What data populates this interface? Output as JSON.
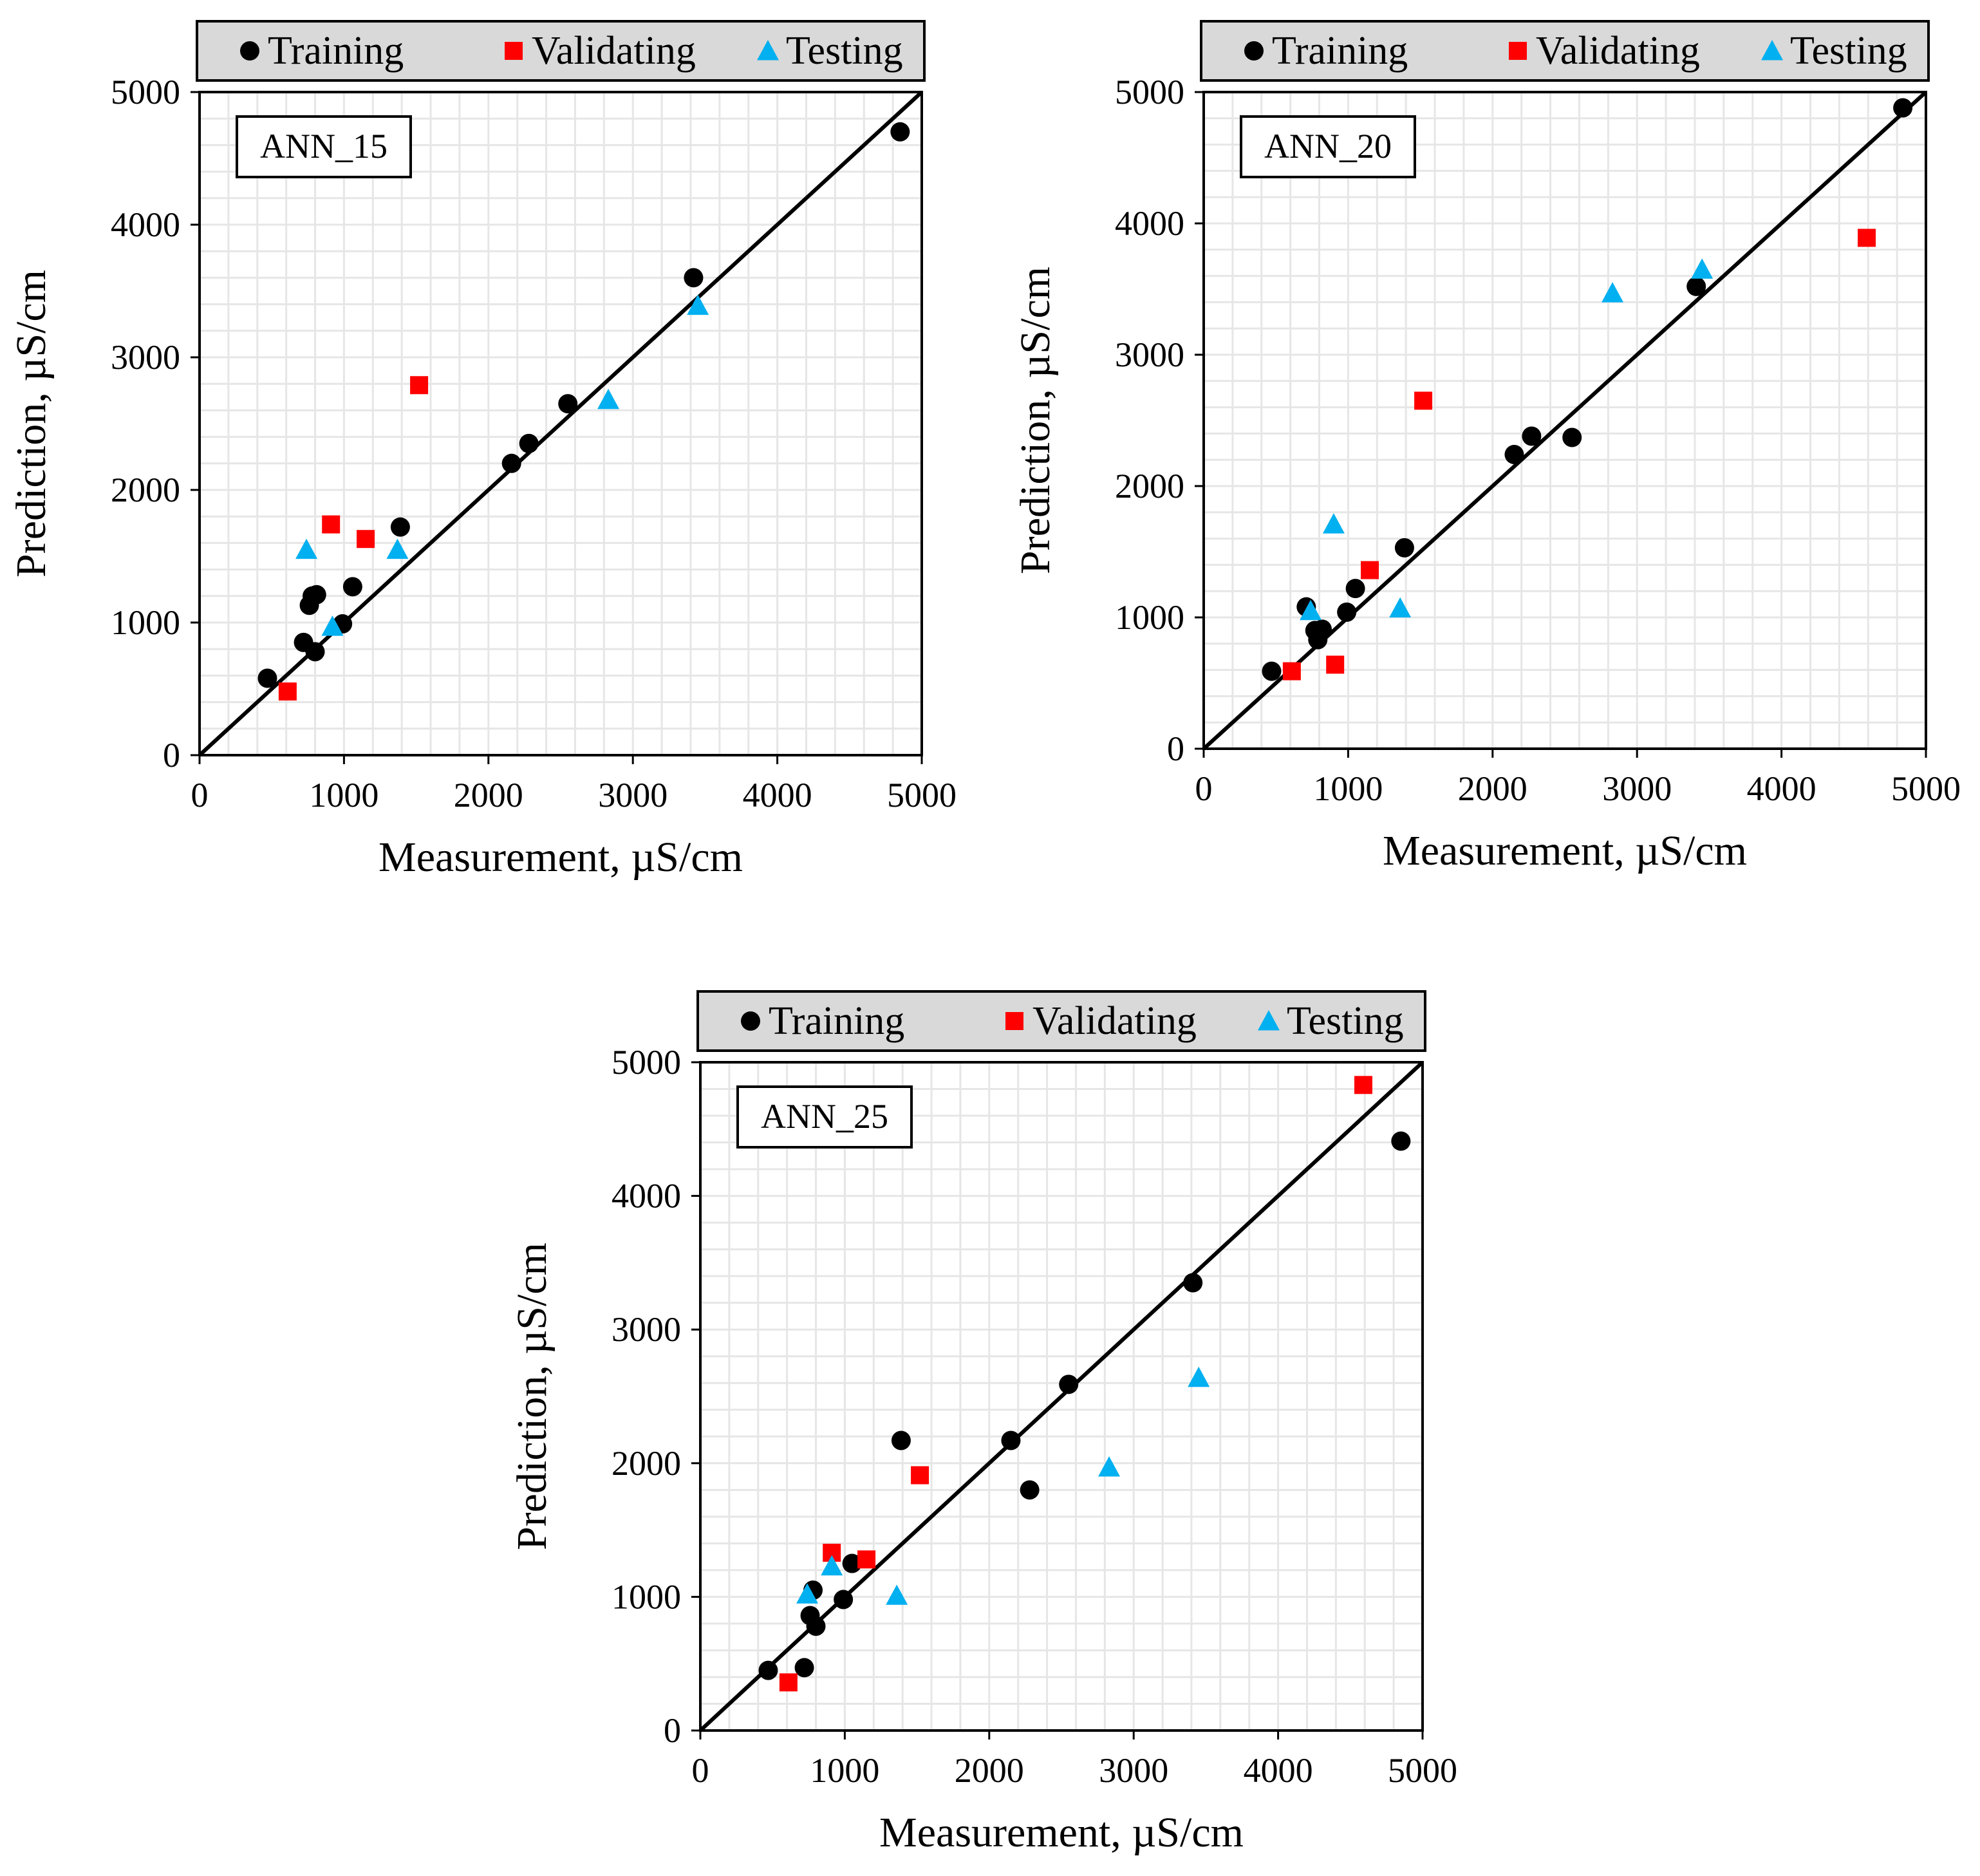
{
  "chart_data": [
    {
      "type": "scatter",
      "panel_label": "ANN_15",
      "title": "",
      "xlabel": "Measurement, µS/cm",
      "ylabel": "Prediction, µS/cm",
      "xlim": [
        0,
        5000
      ],
      "ylim": [
        0,
        5000
      ],
      "x_ticks": [
        "0",
        "1000",
        "2000",
        "3000",
        "4000",
        "5000"
      ],
      "y_ticks": [
        "0",
        "1000",
        "2000",
        "3000",
        "4000",
        "5000"
      ],
      "grid": true,
      "legend_position": "top",
      "reference_line": {
        "from": [
          0,
          0
        ],
        "to": [
          5000,
          5000
        ]
      },
      "series": [
        {
          "name": "Training",
          "marker": "circle",
          "color": "#000000",
          "points": [
            [
              470,
              580
            ],
            [
              720,
              850
            ],
            [
              760,
              1130
            ],
            [
              780,
              1200
            ],
            [
              810,
              1210
            ],
            [
              800,
              780
            ],
            [
              990,
              990
            ],
            [
              1060,
              1270
            ],
            [
              1390,
              1720
            ],
            [
              2160,
              2200
            ],
            [
              2280,
              2350
            ],
            [
              2550,
              2650
            ],
            [
              3420,
              3600
            ],
            [
              4850,
              4700
            ]
          ]
        },
        {
          "name": "Validating",
          "marker": "square",
          "color": "#ff0000",
          "points": [
            [
              610,
              480
            ],
            [
              910,
              1740
            ],
            [
              1150,
              1630
            ],
            [
              1520,
              2790
            ]
          ]
        },
        {
          "name": "Testing",
          "marker": "triangle",
          "color": "#00b0f0",
          "points": [
            [
              740,
              1550
            ],
            [
              920,
              970
            ],
            [
              1370,
              1550
            ],
            [
              2830,
              2680
            ],
            [
              3450,
              3390
            ]
          ]
        }
      ]
    },
    {
      "type": "scatter",
      "panel_label": "ANN_20",
      "title": "",
      "xlabel": "Measurement, µS/cm",
      "ylabel": "Prediction, µS/cm",
      "xlim": [
        0,
        5000
      ],
      "ylim": [
        0,
        5000
      ],
      "x_ticks": [
        "0",
        "1000",
        "2000",
        "3000",
        "4000",
        "5000"
      ],
      "y_ticks": [
        "0",
        "1000",
        "2000",
        "3000",
        "4000",
        "5000"
      ],
      "grid": true,
      "legend_position": "top",
      "reference_line": {
        "from": [
          0,
          0
        ],
        "to": [
          5000,
          5000
        ]
      },
      "series": [
        {
          "name": "Training",
          "marker": "circle",
          "color": "#000000",
          "points": [
            [
              470,
              590
            ],
            [
              710,
              1080
            ],
            [
              770,
              900
            ],
            [
              790,
              830
            ],
            [
              820,
              910
            ],
            [
              990,
              1040
            ],
            [
              1050,
              1220
            ],
            [
              1390,
              1530
            ],
            [
              2150,
              2240
            ],
            [
              2270,
              2380
            ],
            [
              2550,
              2370
            ],
            [
              3410,
              3520
            ],
            [
              4840,
              4880
            ]
          ]
        },
        {
          "name": "Validating",
          "marker": "square",
          "color": "#ff0000",
          "points": [
            [
              610,
              590
            ],
            [
              910,
              640
            ],
            [
              1150,
              1360
            ],
            [
              1520,
              2650
            ],
            [
              4590,
              3890
            ]
          ]
        },
        {
          "name": "Testing",
          "marker": "triangle",
          "color": "#00b0f0",
          "points": [
            [
              740,
              1050
            ],
            [
              900,
              1710
            ],
            [
              1360,
              1070
            ],
            [
              2830,
              3470
            ],
            [
              3450,
              3650
            ]
          ]
        }
      ]
    },
    {
      "type": "scatter",
      "panel_label": "ANN_25",
      "title": "",
      "xlabel": "Measurement, µS/cm",
      "ylabel": "Prediction, µS/cm",
      "xlim": [
        0,
        5000
      ],
      "ylim": [
        0,
        5000
      ],
      "x_ticks": [
        "0",
        "1000",
        "2000",
        "3000",
        "4000",
        "5000"
      ],
      "y_ticks": [
        "0",
        "1000",
        "2000",
        "3000",
        "4000",
        "5000"
      ],
      "grid": true,
      "legend_position": "top",
      "reference_line": {
        "from": [
          0,
          0
        ],
        "to": [
          5000,
          5000
        ]
      },
      "series": [
        {
          "name": "Training",
          "marker": "circle",
          "color": "#000000",
          "points": [
            [
              470,
              450
            ],
            [
              720,
              470
            ],
            [
              760,
              860
            ],
            [
              780,
              1050
            ],
            [
              800,
              780
            ],
            [
              990,
              980
            ],
            [
              1050,
              1250
            ],
            [
              1390,
              2170
            ],
            [
              2150,
              2170
            ],
            [
              2280,
              1800
            ],
            [
              2550,
              2590
            ],
            [
              3410,
              3350
            ],
            [
              4850,
              4410
            ]
          ]
        },
        {
          "name": "Validating",
          "marker": "square",
          "color": "#ff0000",
          "points": [
            [
              610,
              360
            ],
            [
              910,
              1330
            ],
            [
              1150,
              1280
            ],
            [
              1520,
              1910
            ],
            [
              4590,
              4830
            ]
          ]
        },
        {
          "name": "Testing",
          "marker": "triangle",
          "color": "#00b0f0",
          "points": [
            [
              740,
              1020
            ],
            [
              910,
              1230
            ],
            [
              1360,
              1010
            ],
            [
              2830,
              1970
            ],
            [
              3450,
              2640
            ]
          ]
        }
      ]
    }
  ]
}
